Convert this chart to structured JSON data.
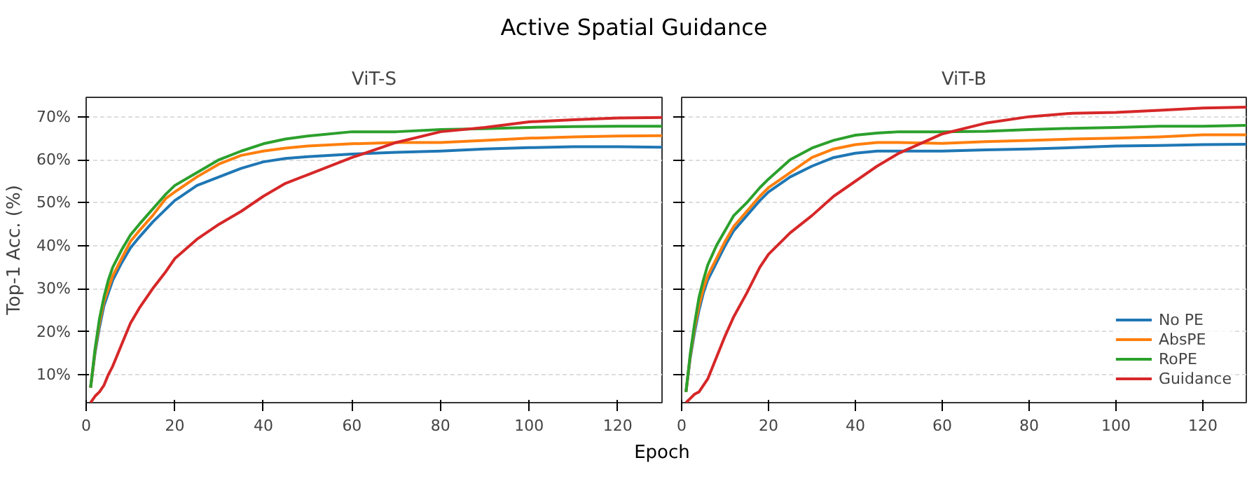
{
  "chart_data": [
    {
      "type": "line",
      "title": "ViT-S",
      "ylabel": "Top-1 Acc. (%)",
      "xlabel": "Epoch",
      "annotations": [
        "Active Spatial Guidance"
      ],
      "x": [
        1,
        2,
        3,
        4,
        5,
        6,
        8,
        10,
        12,
        15,
        18,
        20,
        25,
        30,
        35,
        40,
        45,
        50,
        60,
        70,
        80,
        90,
        100,
        110,
        120,
        130
      ],
      "xlim": [
        0,
        130
      ],
      "xticks": [
        0,
        20,
        40,
        60,
        80,
        100,
        120
      ],
      "ylim": [
        3.5,
        74.5
      ],
      "yticks": [
        {
          "value": 10,
          "label": "10%"
        },
        {
          "value": 20,
          "label": "20%"
        },
        {
          "value": 30,
          "label": "30%"
        },
        {
          "value": 40,
          "label": "40%"
        },
        {
          "value": 50,
          "label": "50%"
        },
        {
          "value": 60,
          "label": "60%"
        },
        {
          "value": 70,
          "label": "70%"
        }
      ],
      "grid": "y",
      "series": [
        {
          "color": "#1f77b4",
          "values": [
            7,
            15,
            21,
            26,
            29,
            32,
            36,
            39.5,
            42,
            45.5,
            48.5,
            50.5,
            54,
            56,
            58,
            59.5,
            60.3,
            60.7,
            61.3,
            61.7,
            62,
            62.5,
            62.8,
            63,
            63,
            62.9
          ]
        },
        {
          "color": "#ff7f0e",
          "values": [
            7,
            15.5,
            22,
            27,
            30,
            33,
            37,
            41,
            43.5,
            47,
            51,
            52.5,
            56,
            59,
            61,
            62,
            62.7,
            63.2,
            63.7,
            64,
            64,
            64.5,
            65,
            65.3,
            65.5,
            65.6
          ]
        },
        {
          "color": "#2ca02c",
          "values": [
            7,
            16,
            23,
            28,
            32,
            35,
            39,
            42.5,
            45,
            48.5,
            52,
            54,
            57,
            60,
            62,
            63.7,
            64.8,
            65.5,
            66.5,
            66.5,
            67,
            67.2,
            67.5,
            67.7,
            67.8,
            67.8
          ]
        },
        {
          "color": "#d62728",
          "values": [
            3.5,
            5,
            6,
            7.5,
            10,
            12,
            17,
            22,
            25.5,
            30,
            34,
            37,
            41.5,
            45,
            48,
            51.5,
            54.5,
            56.5,
            60.5,
            64,
            66.5,
            67.5,
            68.8,
            69.3,
            69.7,
            69.8
          ]
        }
      ]
    },
    {
      "type": "line",
      "title": "ViT-B",
      "tick_labels": "x",
      "x": [
        1,
        2,
        3,
        4,
        5,
        6,
        8,
        10,
        12,
        15,
        18,
        20,
        25,
        30,
        35,
        40,
        45,
        50,
        60,
        70,
        80,
        90,
        100,
        110,
        120,
        130
      ],
      "xlim": [
        0,
        130
      ],
      "xticks": [
        0,
        20,
        40,
        60,
        80,
        100,
        120
      ],
      "ylim": [
        3.5,
        74.5
      ],
      "yticks": [
        {
          "value": 10,
          "label": null
        },
        {
          "value": 20,
          "label": null
        },
        {
          "value": 30,
          "label": null
        },
        {
          "value": 40,
          "label": null
        },
        {
          "value": 50,
          "label": null
        },
        {
          "value": 60,
          "label": null
        },
        {
          "value": 70,
          "label": null
        }
      ],
      "grid": "y",
      "legend": "bottom right",
      "series": [
        {
          "name": "No PE",
          "color": "#1f77b4",
          "values": [
            6,
            14,
            20,
            25,
            29,
            32,
            36,
            40,
            43.5,
            47,
            50.5,
            52.5,
            56,
            58.5,
            60.5,
            61.5,
            62,
            62,
            62,
            62.3,
            62.5,
            62.8,
            63.2,
            63.3,
            63.5,
            63.6
          ]
        },
        {
          "name": "AbsPE",
          "color": "#ff7f0e",
          "values": [
            6,
            14.5,
            21,
            26,
            30,
            33,
            37,
            41,
            44.5,
            48,
            51.5,
            53.5,
            57,
            60.5,
            62.5,
            63.5,
            64,
            64,
            63.8,
            64.2,
            64.5,
            64.8,
            65,
            65.3,
            65.8,
            65.8
          ]
        },
        {
          "name": "RoPE",
          "color": "#2ca02c",
          "values": [
            6,
            15,
            22,
            28,
            32,
            35.5,
            40,
            43.5,
            47,
            50,
            53.5,
            55.5,
            60,
            62.7,
            64.5,
            65.7,
            66.2,
            66.5,
            66.5,
            66.6,
            67,
            67.3,
            67.5,
            67.8,
            67.8,
            68
          ]
        },
        {
          "name": "Guidance",
          "color": "#d62728",
          "values": [
            3.5,
            4.5,
            5.5,
            6,
            7.5,
            9,
            14,
            19,
            23.5,
            29,
            35,
            38,
            43,
            47,
            51.5,
            55,
            58.5,
            61.5,
            66,
            68.5,
            70,
            70.8,
            71,
            71.5,
            72,
            72.2
          ]
        }
      ]
    }
  ]
}
